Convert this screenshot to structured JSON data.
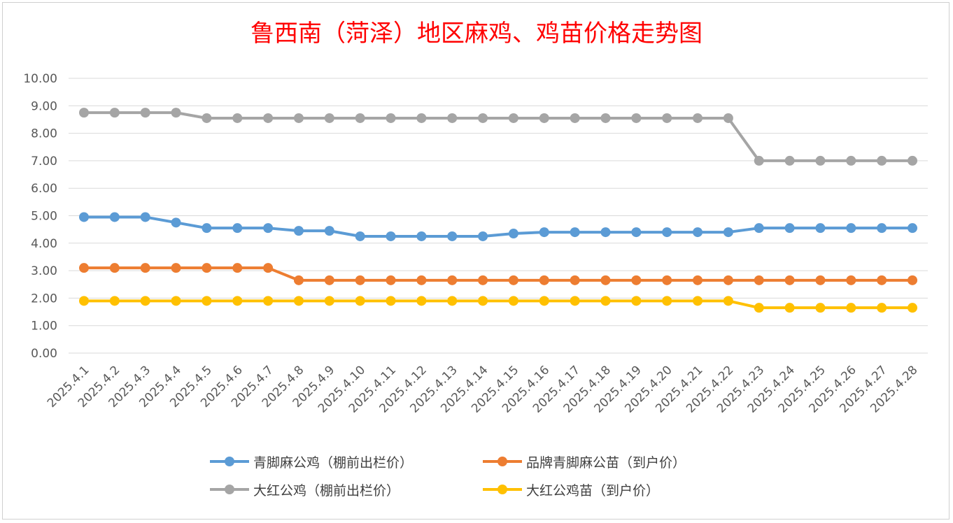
{
  "chart_data": {
    "type": "line",
    "title": "鲁西南（菏泽）地区麻鸡、鸡苗价格走势图",
    "xlabel": "",
    "ylabel": "",
    "ylim": [
      0,
      10
    ],
    "y_ticks": [
      "0.00",
      "1.00",
      "2.00",
      "3.00",
      "4.00",
      "5.00",
      "6.00",
      "7.00",
      "8.00",
      "9.00",
      "10.00"
    ],
    "grid": true,
    "legend_position": "bottom",
    "categories": [
      "2025.4.1",
      "2025.4.2",
      "2025.4.3",
      "2025.4.4",
      "2025.4.5",
      "2025.4.6",
      "2025.4.7",
      "2025.4.8",
      "2025.4.9",
      "2025.4.10",
      "2025.4.11",
      "2025.4.12",
      "2025.4.13",
      "2025.4.14",
      "2025.4.15",
      "2025.4.16",
      "2025.4.17",
      "2025.4.18",
      "2025.4.19",
      "2025.4.20",
      "2025.4.21",
      "2025.4.22",
      "2025.4.23",
      "2025.4.24",
      "2025.4.25",
      "2025.4.26",
      "2025.4.27",
      "2025.4.28"
    ],
    "series": [
      {
        "name": "青脚麻公鸡（棚前出栏价）",
        "color": "#5b9bd5",
        "values": [
          4.95,
          4.95,
          4.95,
          4.75,
          4.55,
          4.55,
          4.55,
          4.45,
          4.45,
          4.25,
          4.25,
          4.25,
          4.25,
          4.25,
          4.35,
          4.4,
          4.4,
          4.4,
          4.4,
          4.4,
          4.4,
          4.4,
          4.55,
          4.55,
          4.55,
          4.55,
          4.55,
          4.55
        ]
      },
      {
        "name": "品牌青脚麻公苗（到户价）",
        "color": "#ed7d31",
        "values": [
          3.1,
          3.1,
          3.1,
          3.1,
          3.1,
          3.1,
          3.1,
          2.65,
          2.65,
          2.65,
          2.65,
          2.65,
          2.65,
          2.65,
          2.65,
          2.65,
          2.65,
          2.65,
          2.65,
          2.65,
          2.65,
          2.65,
          2.65,
          2.65,
          2.65,
          2.65,
          2.65,
          2.65
        ]
      },
      {
        "name": "大红公鸡（棚前出栏价）",
        "color": "#a5a5a5",
        "values": [
          8.75,
          8.75,
          8.75,
          8.75,
          8.55,
          8.55,
          8.55,
          8.55,
          8.55,
          8.55,
          8.55,
          8.55,
          8.55,
          8.55,
          8.55,
          8.55,
          8.55,
          8.55,
          8.55,
          8.55,
          8.55,
          8.55,
          7.0,
          7.0,
          7.0,
          7.0,
          7.0,
          7.0
        ]
      },
      {
        "name": "大红公鸡苗（到户价）",
        "color": "#ffc000",
        "values": [
          1.9,
          1.9,
          1.9,
          1.9,
          1.9,
          1.9,
          1.9,
          1.9,
          1.9,
          1.9,
          1.9,
          1.9,
          1.9,
          1.9,
          1.9,
          1.9,
          1.9,
          1.9,
          1.9,
          1.9,
          1.9,
          1.9,
          1.65,
          1.65,
          1.65,
          1.65,
          1.65,
          1.65
        ]
      }
    ]
  }
}
